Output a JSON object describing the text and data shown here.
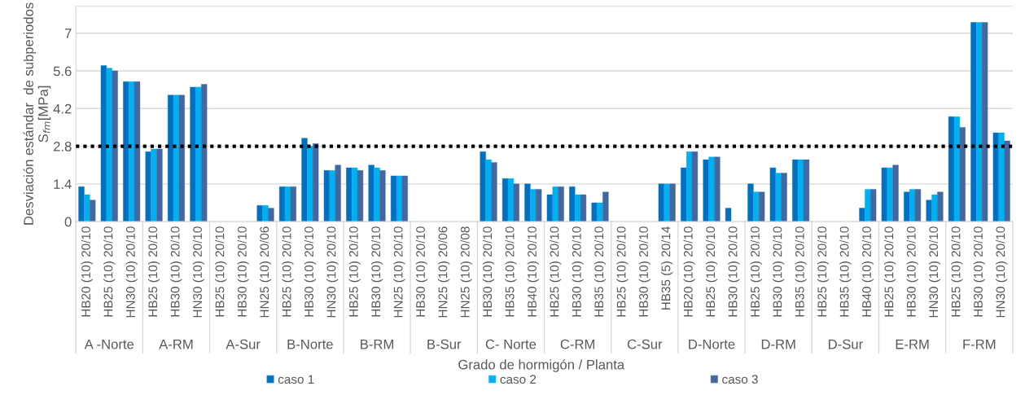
{
  "chart_data": {
    "type": "bar",
    "ylabel": "Desviación estándar  de subperiodos\nS$_{fm}$[MPa]",
    "xlabel": "Grado de hormigón / Planta",
    "categories": [
      "HB20 (10) 20/10",
      "HB25 (10) 20/10",
      "HN30 (10) 20/10",
      "HB25 (10) 20/10",
      "HB30 (10) 20/10",
      "HN30 (10) 20/10",
      "HB25 (10) 20/10",
      "HB30 (10) 20/10",
      "HN25 (10) 20/06",
      "HB25 (10) 20/10",
      "HB30 (10) 20/10",
      "HN30 (10) 20/10",
      "HB25 (10) 20/10",
      "HB30 (10) 20/10",
      "HN25 (10) 20/10",
      "HB30 (10) 20/10",
      "HN25 (10) 20/06",
      "HN25 (10) 20/08",
      "HB30 (10) 20/10",
      "HB35 (10) 20/10",
      "HB40 (10) 20/10",
      "HB25 (10) 20/10",
      "HB30 (10) 20/10",
      "HB35 (10) 20/10",
      "HB25 (10) 20/10",
      "HB30 (10) 20/10",
      "HB35 (5) 20/14",
      "HB20 (10) 20/10",
      "HB25 (10) 20/10",
      "HB30 (10) 20/10",
      "HB25 (10) 20/10",
      "HB30 (10) 20/10",
      "HB35 (10) 20/10",
      "HB25 (10) 20/10",
      "HB35 (10) 20/10",
      "HB40 (10) 20/10",
      "HB25 (10) 20/10",
      "HB30 (10) 20/10",
      "HN30 (10) 20/10",
      "HB25 (10) 20/10",
      "HB30 (10) 20/10",
      "HN30 (10) 20/10"
    ],
    "annotations": [
      "A -Norte",
      "A-RM",
      "A-Sur",
      "B-Norte",
      "B-RM",
      "B-Sur",
      "C- Norte",
      "C-RM",
      "C-Sur",
      "D-Norte",
      "D-RM",
      "D-Sur",
      "E-RM",
      "F-RM"
    ],
    "series": [
      {
        "name": "caso 1",
        "color": "#0070c0",
        "values": [
          1.3,
          5.8,
          5.2,
          2.6,
          4.7,
          5.0,
          null,
          null,
          0.6,
          1.3,
          3.1,
          1.9,
          2.0,
          2.1,
          1.7,
          null,
          null,
          null,
          2.6,
          1.6,
          1.4,
          1.0,
          1.3,
          0.7,
          null,
          null,
          1.4,
          2.0,
          2.3,
          0.5,
          1.4,
          2.0,
          2.3,
          null,
          null,
          0.5,
          2.0,
          1.1,
          0.8,
          3.9,
          7.4,
          3.3
        ]
      },
      {
        "name": "caso 2",
        "color": "#00b0f0",
        "values": [
          1.0,
          5.7,
          5.2,
          2.7,
          4.7,
          5.0,
          null,
          null,
          0.6,
          1.3,
          2.8,
          1.9,
          2.0,
          2.0,
          1.7,
          null,
          null,
          null,
          2.3,
          1.6,
          1.2,
          1.3,
          1.0,
          0.7,
          null,
          null,
          1.4,
          2.6,
          2.4,
          null,
          1.1,
          1.8,
          2.3,
          null,
          null,
          1.2,
          2.0,
          1.2,
          1.0,
          3.9,
          7.4,
          3.3
        ]
      },
      {
        "name": "caso 3",
        "color": "#44679f",
        "values": [
          0.8,
          5.6,
          5.2,
          2.7,
          4.7,
          5.1,
          null,
          null,
          0.5,
          1.3,
          2.9,
          2.1,
          1.9,
          1.9,
          1.7,
          null,
          null,
          null,
          2.2,
          1.4,
          1.2,
          1.3,
          1.0,
          1.1,
          null,
          null,
          1.4,
          2.6,
          2.4,
          null,
          1.1,
          1.8,
          2.3,
          null,
          null,
          1.2,
          2.1,
          1.2,
          1.1,
          3.5,
          7.4,
          3.0
        ]
      }
    ],
    "ylim": [
      0,
      8.0
    ],
    "yticks": [
      0,
      1.4,
      2.8,
      4.2,
      5.6,
      7
    ],
    "ref_lines": [
      {
        "axis": "y",
        "value": 2.8,
        "color": "#000000",
        "line_style": "dotted"
      }
    ],
    "grid": "y",
    "legend": "bottom"
  }
}
